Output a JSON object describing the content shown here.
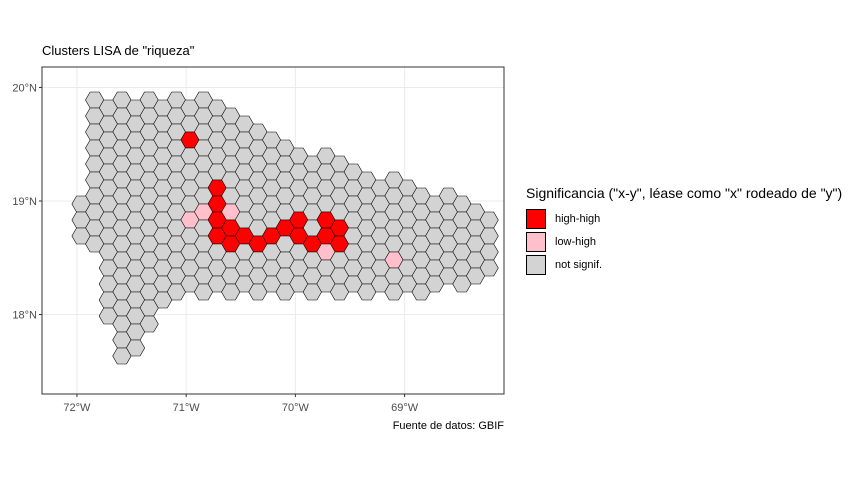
{
  "title": "Clusters LISA de \"riqueza\"",
  "caption": "Fuente de datos: GBIF",
  "legend": {
    "title": "Significancia (\"x-y\", léase como \"x\" rodeado de \"y\")",
    "items": [
      {
        "label": "high-high",
        "color": "#ff0000"
      },
      {
        "label": "low-high",
        "color": "#ffc0cb"
      },
      {
        "label": "not signif.",
        "color": "#d3d3d3"
      }
    ]
  },
  "axes": {
    "x_ticks": [
      "72°W",
      "71°W",
      "70°W",
      "69°W"
    ],
    "x_values": [
      -72,
      -71,
      -70,
      -69
    ],
    "y_ticks": [
      "20°N",
      "19°N",
      "18°N"
    ],
    "y_values": [
      20,
      19,
      18
    ],
    "xlim": [
      -72.32,
      -68.09
    ],
    "ylim": [
      17.3,
      20.18
    ],
    "grid": true
  },
  "colors": {
    "high_high": "#ff0000",
    "low_high": "#ffc0cb",
    "not_signif": "#d3d3d3",
    "panel_border": "#333333",
    "grid": "#ebebeb"
  }
}
